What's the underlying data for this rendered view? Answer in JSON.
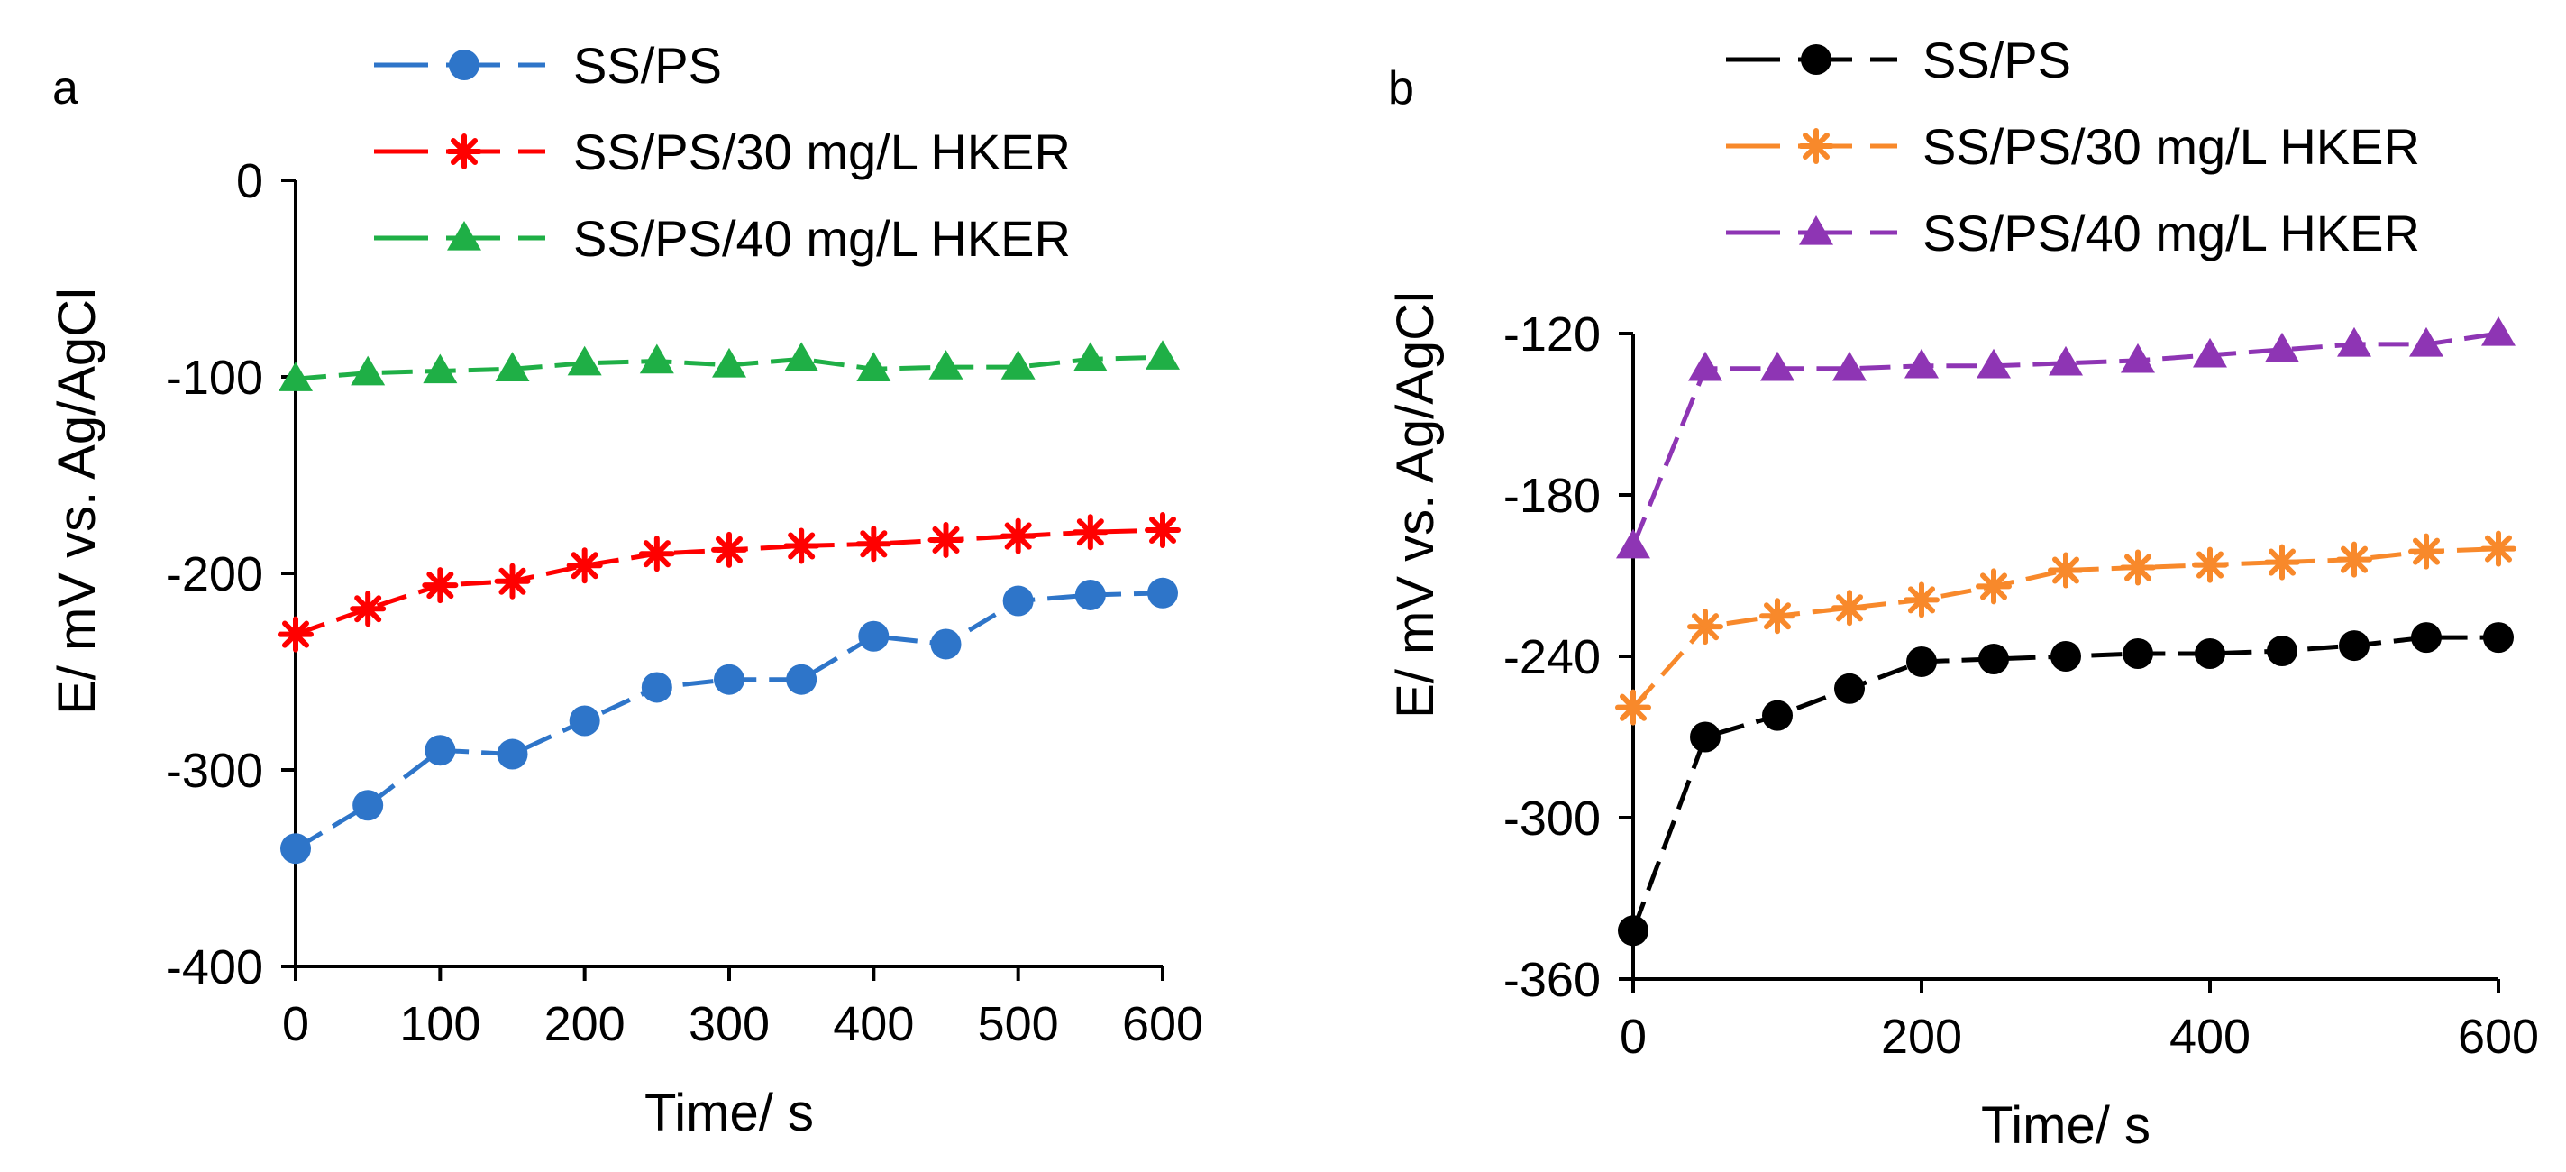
{
  "colors": {
    "a_ss_ps": "#2E75C9",
    "a_30": "#FF0000",
    "a_40": "#1FAF46",
    "b_ss_ps": "#000000",
    "b_30": "#F8892B",
    "b_40": "#8E35B4"
  },
  "chart_data": [
    {
      "panel_label": "a",
      "type": "line",
      "xlabel": "Time/ s",
      "ylabel": "E/ mV vs. Ag/AgCl",
      "xlim": [
        0,
        600
      ],
      "ylim": [
        -400,
        0
      ],
      "xticks": [
        0,
        100,
        200,
        300,
        400,
        500,
        600
      ],
      "yticks": [
        0,
        -100,
        -200,
        -300,
        -400
      ],
      "legend_position": "top",
      "series": [
        {
          "name": "SS/PS",
          "marker": "circle",
          "color_key": "a_ss_ps",
          "x": [
            0,
            50,
            100,
            150,
            200,
            250,
            300,
            350,
            400,
            450,
            500,
            550,
            600
          ],
          "values": [
            -340,
            -318,
            -290,
            -292,
            -275,
            -258,
            -254,
            -254,
            -232,
            -236,
            -214,
            -211,
            -210
          ]
        },
        {
          "name": "SS/PS/30 mg/L HKER",
          "marker": "star",
          "color_key": "a_30",
          "x": [
            0,
            50,
            100,
            150,
            200,
            250,
            300,
            350,
            400,
            450,
            500,
            550,
            600
          ],
          "values": [
            -231,
            -218,
            -206,
            -204,
            -196,
            -190,
            -188,
            -186,
            -185,
            -183,
            -181,
            -179,
            -178
          ]
        },
        {
          "name": "SS/PS/40 mg/L HKER",
          "marker": "triangle",
          "color_key": "a_40",
          "x": [
            0,
            50,
            100,
            150,
            200,
            250,
            300,
            350,
            400,
            450,
            500,
            550,
            600
          ],
          "values": [
            -101,
            -98,
            -97,
            -96,
            -93,
            -92,
            -94,
            -91,
            -96,
            -95,
            -95,
            -91,
            -90
          ]
        }
      ]
    },
    {
      "panel_label": "b",
      "type": "line",
      "xlabel": "Time/ s",
      "ylabel": "E/ mV vs. Ag/AgCl",
      "xlim": [
        0,
        600
      ],
      "ylim": [
        -360,
        -120
      ],
      "xticks": [
        0,
        200,
        400,
        600
      ],
      "yticks": [
        -120,
        -180,
        -240,
        -300,
        -360
      ],
      "legend_position": "top",
      "series": [
        {
          "name": "SS/PS",
          "marker": "circle",
          "color_key": "b_ss_ps",
          "x": [
            0,
            50,
            100,
            150,
            200,
            250,
            300,
            350,
            400,
            450,
            500,
            550,
            600
          ],
          "values": [
            -342,
            -270,
            -262,
            -252,
            -242,
            -241,
            -240,
            -239,
            -239,
            -238,
            -236,
            -233,
            -233
          ]
        },
        {
          "name": "SS/PS/30 mg/L HKER",
          "marker": "star",
          "color_key": "b_30",
          "x": [
            0,
            50,
            100,
            150,
            200,
            250,
            300,
            350,
            400,
            450,
            500,
            550,
            600
          ],
          "values": [
            -259,
            -229,
            -225,
            -222,
            -219,
            -214,
            -208,
            -207,
            -206,
            -205,
            -204,
            -201,
            -200
          ]
        },
        {
          "name": "SS/PS/40 mg/L HKER",
          "marker": "triangle",
          "color_key": "b_40",
          "x": [
            0,
            50,
            100,
            150,
            200,
            250,
            300,
            350,
            400,
            450,
            500,
            550,
            600
          ],
          "values": [
            -199,
            -133,
            -133,
            -133,
            -132,
            -132,
            -131,
            -130,
            -128,
            -126,
            -124,
            -124,
            -120
          ]
        }
      ]
    }
  ]
}
